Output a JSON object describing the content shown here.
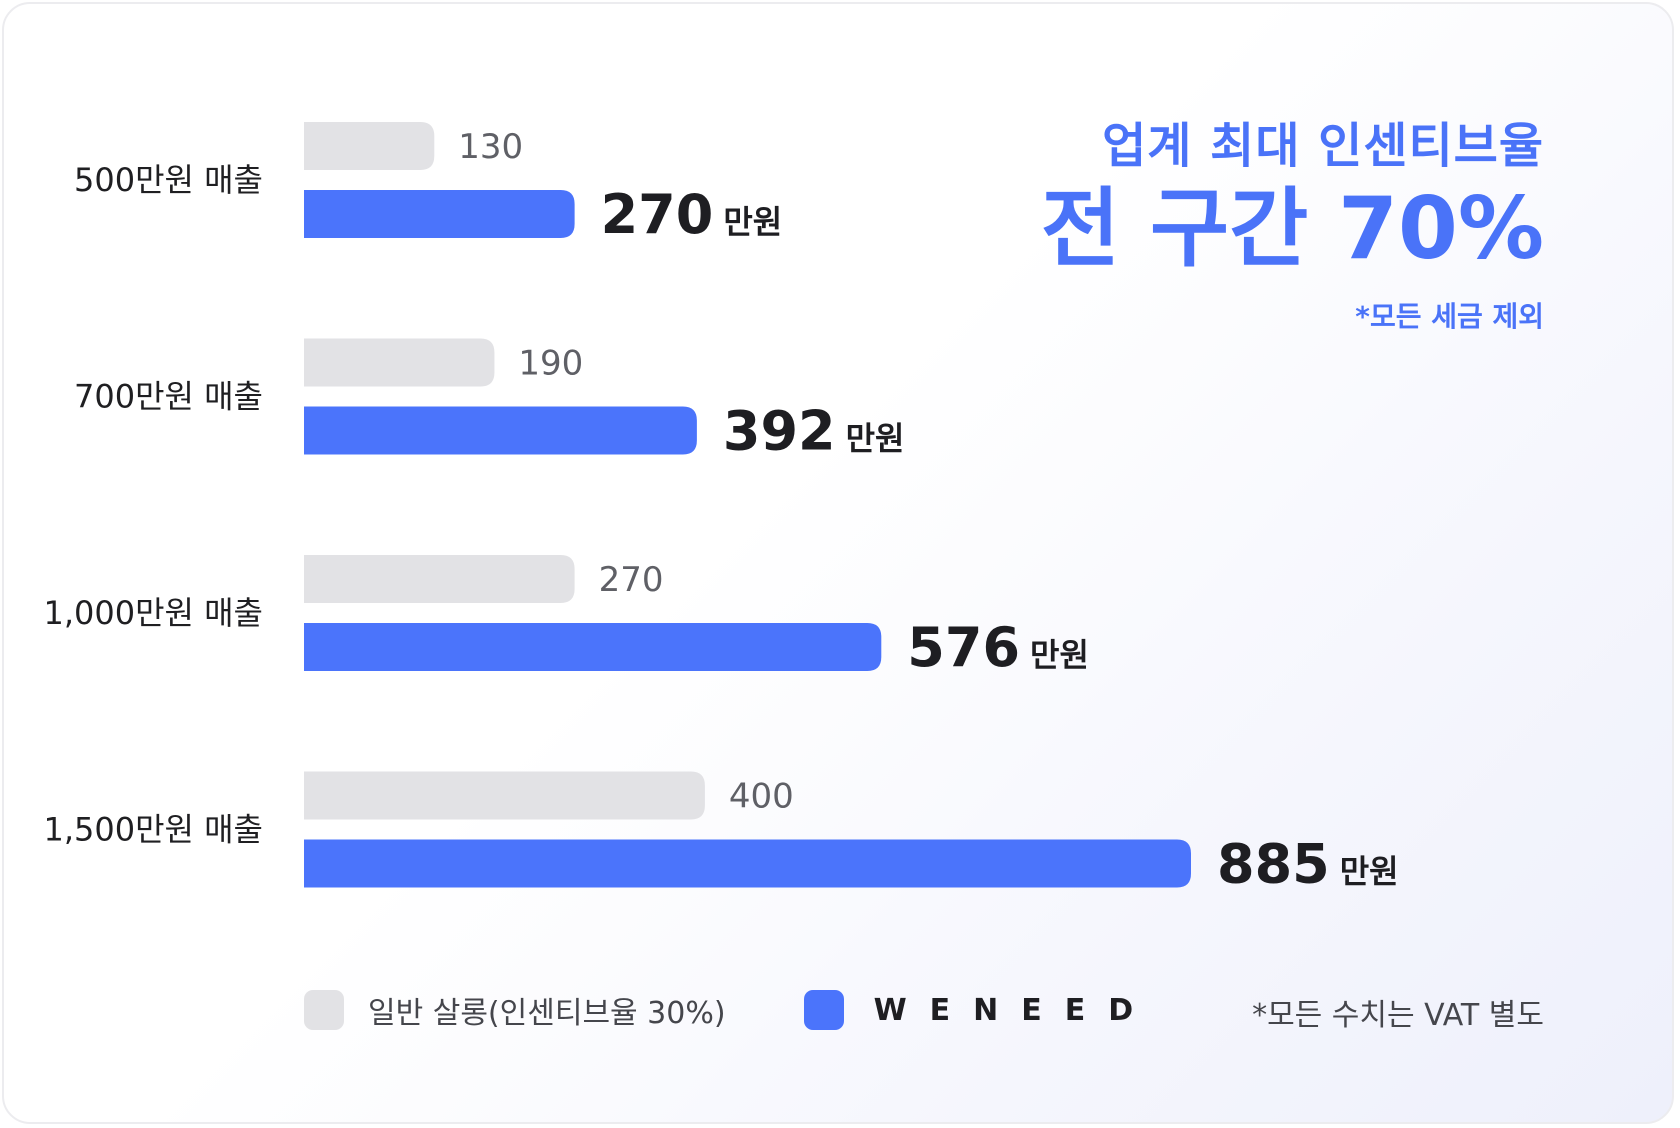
{
  "colors": {
    "base": "#e2e2e5",
    "brand": "#4b74fb",
    "accent_text": "#4a73f8"
  },
  "headline": {
    "line1": "업계 최대 인센티브율",
    "line2": "전 구간 70%",
    "note": "*모든 세금 제외"
  },
  "legend": {
    "base_label": "일반 살롱(인센티브율 30%)",
    "brand_name": "WENEED"
  },
  "footnote": "*모든 수치는 VAT 별도",
  "chart_data": {
    "type": "bar",
    "orientation": "horizontal",
    "categories": [
      "500만원 매출",
      "700만원 매출",
      "1,000만원 매출",
      "1,500만원 매출"
    ],
    "series": [
      {
        "name": "일반 살롱(인센티브율 30%)",
        "values": [
          130,
          190,
          270,
          400
        ]
      },
      {
        "name": "WENEED",
        "values": [
          270,
          392,
          576,
          885
        ]
      }
    ],
    "value_unit": "만원",
    "xlim": [
      0,
      885
    ],
    "grid": false,
    "legend_position": "bottom-left"
  }
}
